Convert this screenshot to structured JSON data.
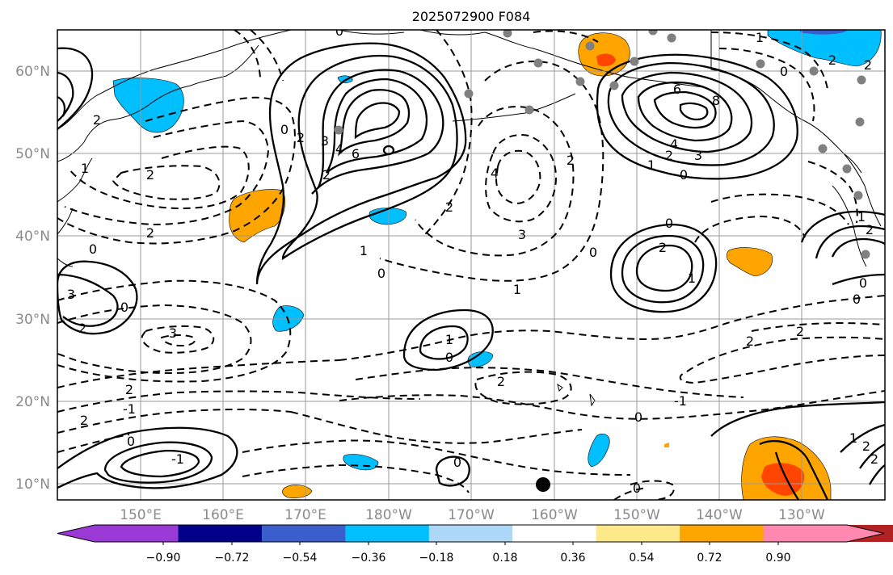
{
  "title": "2025072900 F084",
  "map": {
    "lon_labels": [
      "150°E",
      "160°E",
      "170°E",
      "180°W",
      "170°W",
      "160°W",
      "150°W",
      "140°W",
      "130°W"
    ],
    "lat_labels": [
      "60°N",
      "50°N",
      "40°N",
      "30°N",
      "20°N",
      "10°N"
    ],
    "extent": {
      "lon_min": 140,
      "lon_max": 240,
      "lat_min": 8,
      "lat_max": 65
    },
    "contour_labels": [
      "-1",
      "0",
      "1",
      "2",
      "3",
      "4",
      "6",
      "8"
    ],
    "colors": {
      "coast": "#000000",
      "grid": "#9a9a9a",
      "station": "#808080"
    }
  },
  "colorbar": {
    "tick_labels": [
      "−0.90",
      "−0.72",
      "−0.54",
      "−0.36",
      "−0.18",
      "0.18",
      "0.36",
      "0.54",
      "0.72",
      "0.90"
    ],
    "bins": [
      {
        "range": "< -0.90",
        "color": "#9b39d6"
      },
      {
        "range": "-0.90 to -0.72",
        "color": "#00008b"
      },
      {
        "range": "-0.72 to -0.54",
        "color": "#3a5fcd"
      },
      {
        "range": "-0.54 to -0.36",
        "color": "#00bfff"
      },
      {
        "range": "-0.36 to -0.18",
        "color": "#add8f8"
      },
      {
        "range": "-0.18 to 0.18",
        "color": "#ffffff"
      },
      {
        "range": "0.18 to 0.36",
        "color": "#fee98a"
      },
      {
        "range": "0.36 to 0.54",
        "color": "#ffa500"
      },
      {
        "range": "0.54 to 0.72",
        "color": "#ff4500"
      },
      {
        "range": "0.72 to 0.90",
        "color": "#b22222"
      },
      {
        "range": "> 0.90",
        "color": "#ff88b0"
      }
    ]
  }
}
